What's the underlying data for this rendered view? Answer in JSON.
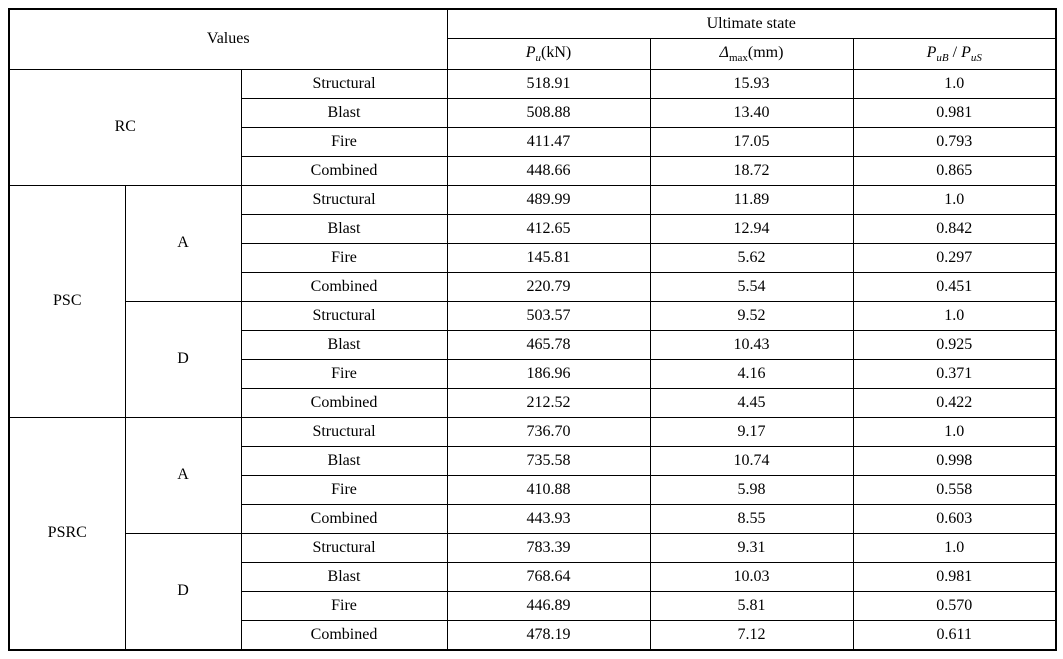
{
  "header": {
    "values": "Values",
    "ultimate": "Ultimate state",
    "pu_prefix_html": "P",
    "pu_sub": "u",
    "pu_unit": "(kN)",
    "delta_sym": "Δ",
    "delta_sub": "max",
    "delta_unit": "(mm)",
    "ratio_P1": "P",
    "ratio_sub1": "uB",
    "ratio_sep": " / ",
    "ratio_P2": "P",
    "ratio_sub2": "uS"
  },
  "conditions": [
    "Structural",
    "Blast",
    "Fire",
    "Combined"
  ],
  "subgroups": {
    "A": "A",
    "D": "D"
  },
  "groups": [
    {
      "name": "RC",
      "rows": [
        {
          "cond": "Structural",
          "pu": "518.91",
          "dmax": "15.93",
          "ratio": "1.0"
        },
        {
          "cond": "Blast",
          "pu": "508.88",
          "dmax": "13.40",
          "ratio": "0.981"
        },
        {
          "cond": "Fire",
          "pu": "411.47",
          "dmax": "17.05",
          "ratio": "0.793"
        },
        {
          "cond": "Combined",
          "pu": "448.66",
          "dmax": "18.72",
          "ratio": "0.865"
        }
      ]
    },
    {
      "name": "PSC",
      "sub": [
        {
          "label": "A",
          "rows": [
            {
              "cond": "Structural",
              "pu": "489.99",
              "dmax": "11.89",
              "ratio": "1.0"
            },
            {
              "cond": "Blast",
              "pu": "412.65",
              "dmax": "12.94",
              "ratio": "0.842"
            },
            {
              "cond": "Fire",
              "pu": "145.81",
              "dmax": "5.62",
              "ratio": "0.297"
            },
            {
              "cond": "Combined",
              "pu": "220.79",
              "dmax": "5.54",
              "ratio": "0.451"
            }
          ]
        },
        {
          "label": "D",
          "rows": [
            {
              "cond": "Structural",
              "pu": "503.57",
              "dmax": "9.52",
              "ratio": "1.0"
            },
            {
              "cond": "Blast",
              "pu": "465.78",
              "dmax": "10.43",
              "ratio": "0.925"
            },
            {
              "cond": "Fire",
              "pu": "186.96",
              "dmax": "4.16",
              "ratio": "0.371"
            },
            {
              "cond": "Combined",
              "pu": "212.52",
              "dmax": "4.45",
              "ratio": "0.422"
            }
          ]
        }
      ]
    },
    {
      "name": "PSRC",
      "sub": [
        {
          "label": "A",
          "rows": [
            {
              "cond": "Structural",
              "pu": "736.70",
              "dmax": "9.17",
              "ratio": "1.0"
            },
            {
              "cond": "Blast",
              "pu": "735.58",
              "dmax": "10.74",
              "ratio": "0.998"
            },
            {
              "cond": "Fire",
              "pu": "410.88",
              "dmax": "5.98",
              "ratio": "0.558"
            },
            {
              "cond": "Combined",
              "pu": "443.93",
              "dmax": "8.55",
              "ratio": "0.603"
            }
          ]
        },
        {
          "label": "D",
          "rows": [
            {
              "cond": "Structural",
              "pu": "783.39",
              "dmax": "9.31",
              "ratio": "1.0"
            },
            {
              "cond": "Blast",
              "pu": "768.64",
              "dmax": "10.03",
              "ratio": "0.981"
            },
            {
              "cond": "Fire",
              "pu": "446.89",
              "dmax": "5.81",
              "ratio": "0.570"
            },
            {
              "cond": "Combined",
              "pu": "478.19",
              "dmax": "7.12",
              "ratio": "0.611"
            }
          ]
        }
      ]
    }
  ]
}
